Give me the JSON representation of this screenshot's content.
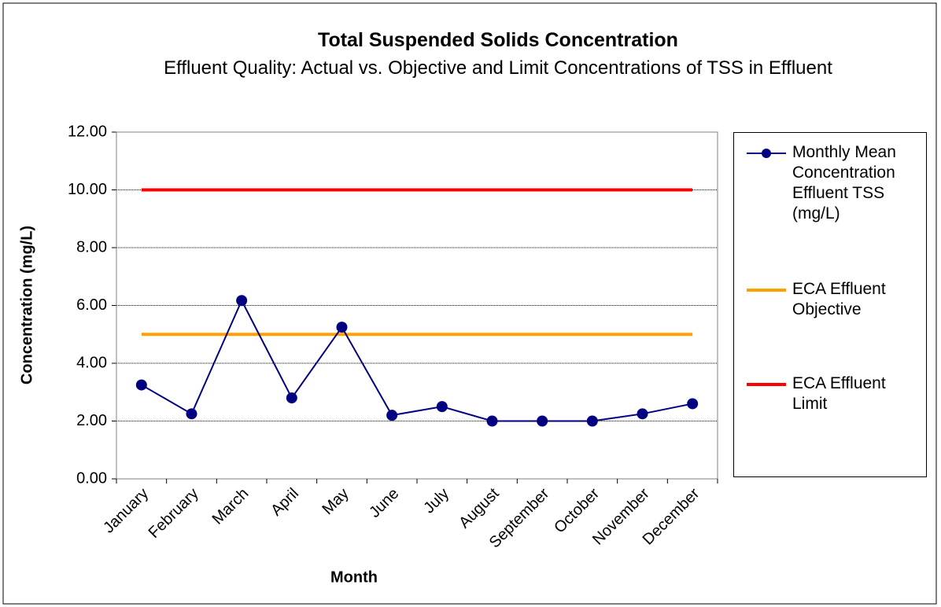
{
  "chart_data": {
    "type": "line",
    "title": "Total Suspended Solids Concentration",
    "subtitle": "Effluent Quality: Actual vs. Objective and Limit Concentrations of TSS in Effluent",
    "x_label": "Month",
    "y_label": "Concentration (mg/L)",
    "categories": [
      "January",
      "February",
      "March",
      "April",
      "May",
      "June",
      "July",
      "August",
      "September",
      "October",
      "November",
      "December"
    ],
    "series": [
      {
        "name": "Monthly Mean Concentration Effluent TSS (mg/L)",
        "color": "#000080",
        "marker": "circle",
        "values": [
          3.25,
          2.25,
          6.17,
          2.8,
          5.25,
          2.2,
          2.5,
          2.0,
          2.0,
          2.0,
          2.25,
          2.6
        ]
      },
      {
        "name": "ECA Effluent Objective",
        "color": "#ffa000",
        "values": [
          5,
          5,
          5,
          5,
          5,
          5,
          5,
          5,
          5,
          5,
          5,
          5
        ]
      },
      {
        "name": "ECA Effluent Limit",
        "color": "#ff0000",
        "values": [
          10,
          10,
          10,
          10,
          10,
          10,
          10,
          10,
          10,
          10,
          10,
          10
        ]
      }
    ],
    "ylim": [
      0,
      12
    ],
    "yticks": [
      {
        "value": 0,
        "label": "0.00"
      },
      {
        "value": 2,
        "label": "2.00"
      },
      {
        "value": 4,
        "label": "4.00"
      },
      {
        "value": 6,
        "label": "6.00"
      },
      {
        "value": 8,
        "label": "8.00"
      },
      {
        "value": 10,
        "label": "10.00"
      },
      {
        "value": 12,
        "label": "12.00"
      }
    ],
    "grid": true,
    "legend": "right"
  }
}
